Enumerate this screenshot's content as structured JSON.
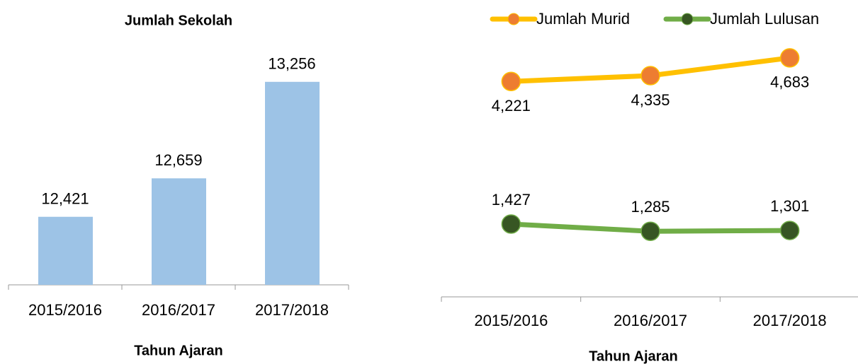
{
  "chart_data": [
    {
      "type": "bar",
      "title": "Jumlah Sekolah",
      "x_label": "Tahun Ajaran",
      "categories": [
        "2015/2016",
        "2016/2017",
        "2017/2018"
      ],
      "values": [
        12421,
        12659,
        13256
      ],
      "value_labels": [
        "12,421",
        "12,659",
        "13,256"
      ],
      "color": "#9dc3e6",
      "ylim": [
        12000,
        13500
      ]
    },
    {
      "type": "line",
      "x_label": "Tahun Ajaran",
      "legend": "top",
      "categories": [
        "2015/2016",
        "2016/2017",
        "2017/2018"
      ],
      "series": [
        {
          "name": "Jumlah Murid",
          "color": "#ffc000",
          "marker_color": "#ed7d31",
          "values": [
            4221,
            4335,
            4683
          ],
          "value_labels": [
            "4,221",
            "4,335",
            "4,683"
          ],
          "label_position": "below"
        },
        {
          "name": "Jumlah Lulusan",
          "color": "#70ad47",
          "marker_color": "#375623",
          "values": [
            1427,
            1285,
            1301
          ],
          "value_labels": [
            "1,427",
            "1,285",
            "1,301"
          ],
          "label_position": "above"
        }
      ],
      "ylim": [
        0,
        5000
      ]
    }
  ]
}
